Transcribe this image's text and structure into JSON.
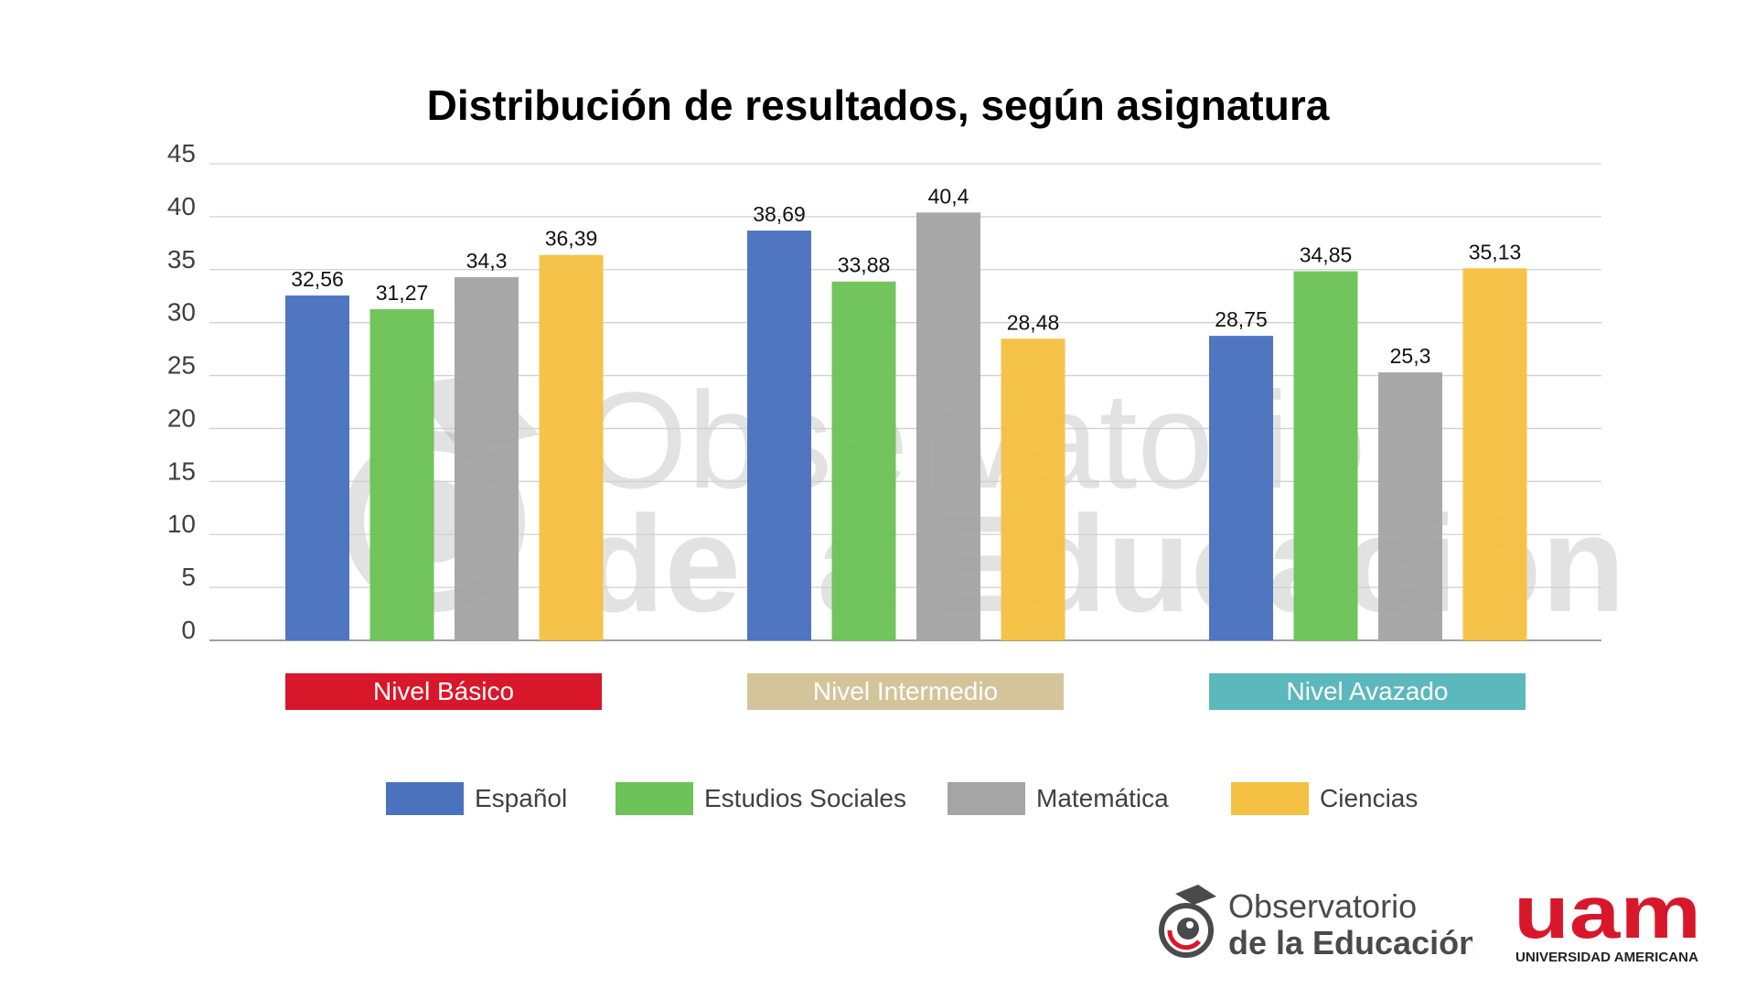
{
  "chart_data": {
    "type": "bar",
    "title": "Distribución de resultados, según asignatura",
    "categories": [
      "Nivel Básico",
      "Nivel Intermedio",
      "Nivel Avazado"
    ],
    "category_colors": [
      "#d9172a",
      "#d4c49a",
      "#5cb8bc"
    ],
    "series": [
      {
        "name": "Español",
        "color": "#4a72bf",
        "values": [
          32.56,
          38.69,
          28.75
        ],
        "labels": [
          "32,56",
          "38,69",
          "28,75"
        ]
      },
      {
        "name": "Estudios Sociales",
        "color": "#6cc357",
        "values": [
          31.27,
          33.88,
          34.85
        ],
        "labels": [
          "31,27",
          "33,88",
          "34,85"
        ]
      },
      {
        "name": "Matemática",
        "color": "#a5a5a5",
        "values": [
          34.3,
          40.4,
          25.3
        ],
        "labels": [
          "34,3",
          "40,4",
          "25,3"
        ]
      },
      {
        "name": "Ciencias",
        "color": "#f5c143",
        "values": [
          36.39,
          28.48,
          35.13
        ],
        "labels": [
          "36,39",
          "28,48",
          "35,13"
        ]
      }
    ],
    "ylim": [
      0,
      45
    ],
    "yticks": [
      0,
      5,
      10,
      15,
      20,
      25,
      30,
      35,
      40,
      45
    ],
    "grid": true,
    "legend_position": "bottom"
  },
  "watermark": {
    "line1": "Observatorio",
    "line2": "de la Educación"
  },
  "logos": {
    "observatorio": {
      "line1": "Observatorio",
      "line2": "de la Educación"
    },
    "uam": {
      "mark": "uam",
      "name": "UNIVERSIDAD AMERICANA",
      "color": "#d9172a"
    }
  }
}
